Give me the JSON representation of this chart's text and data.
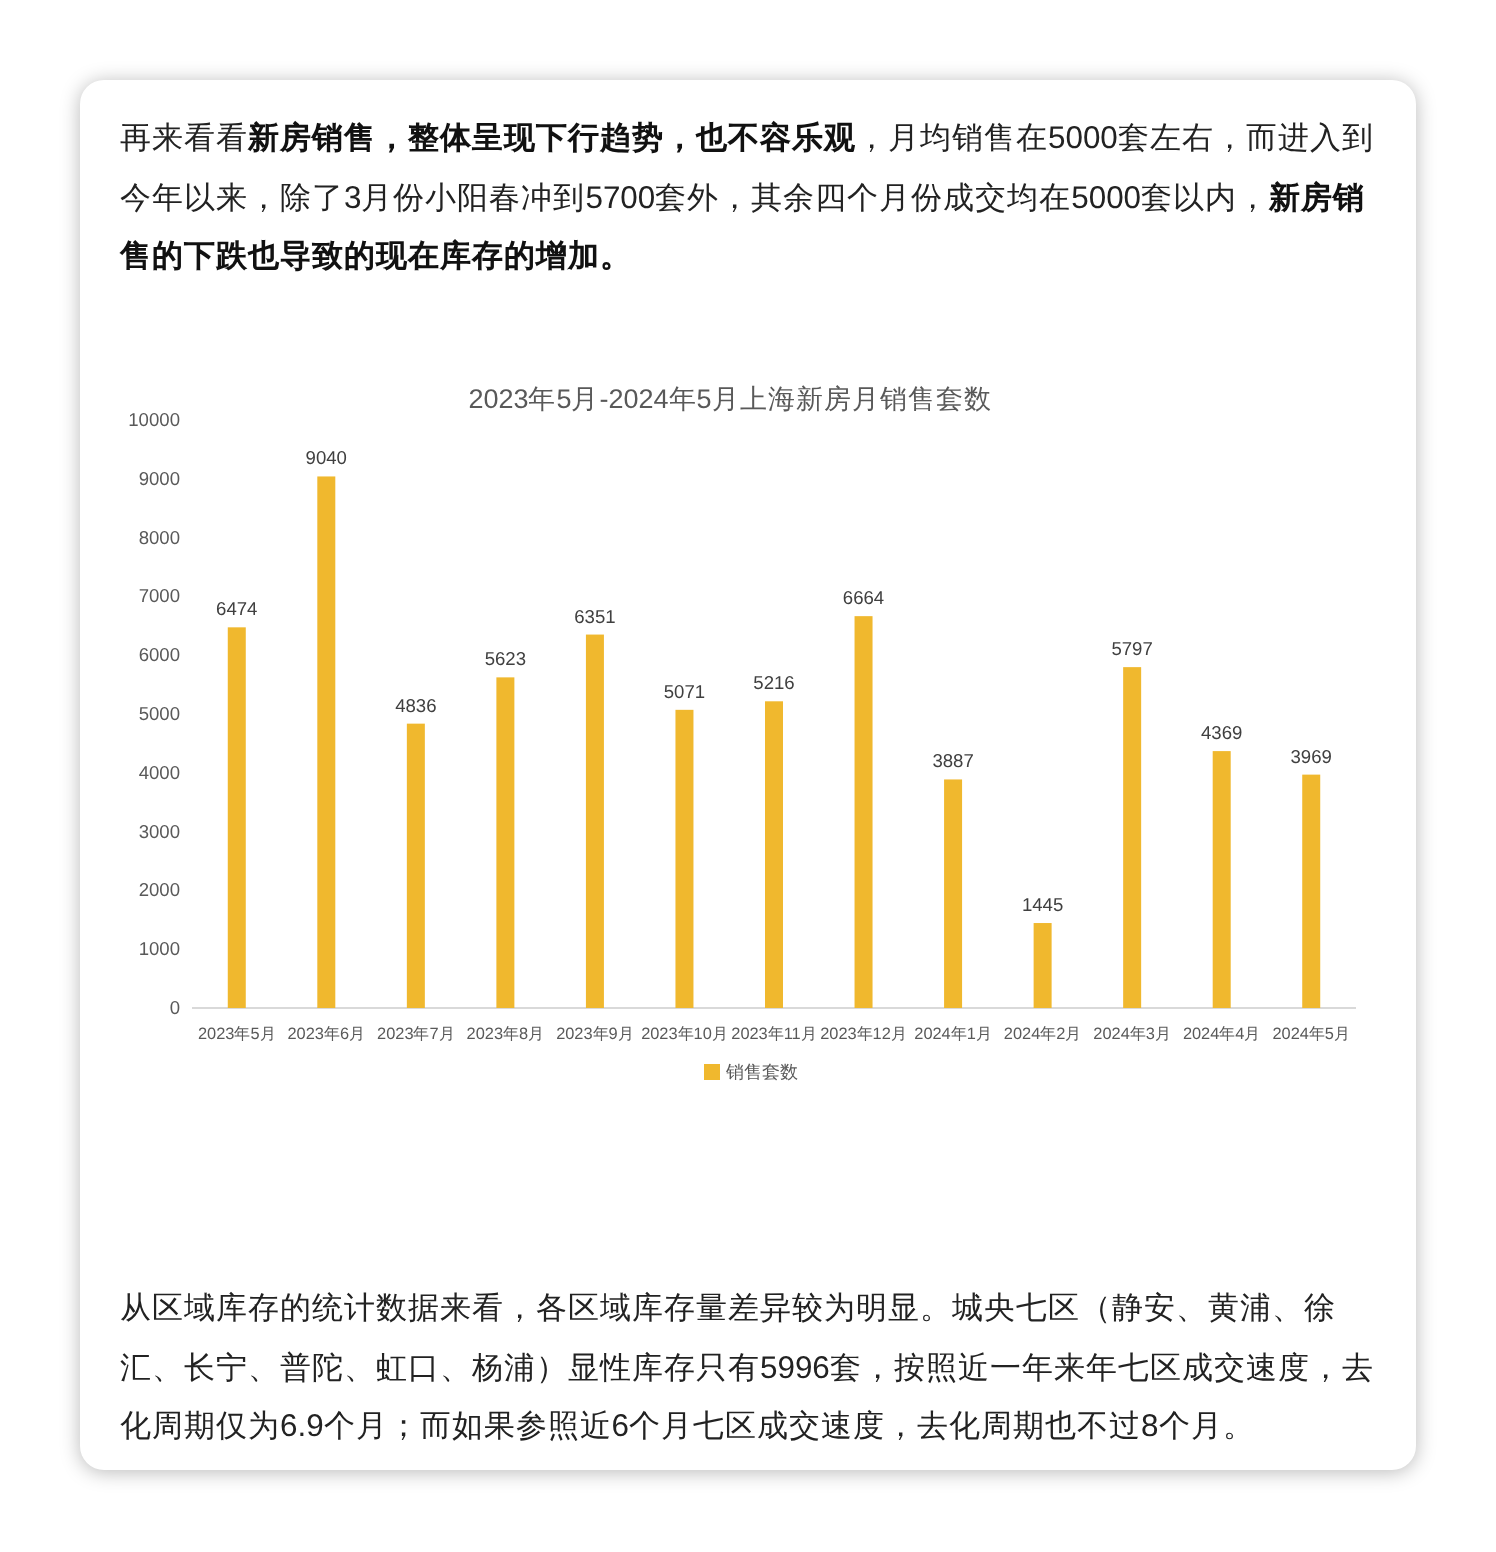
{
  "chart_data": {
    "type": "bar",
    "title": "2023年5月-2024年5月上海新房月销售套数",
    "annotations": [
      "再来看看**新房销售，整体呈现下行趋势，也不容乐观**，月均销售在5000套左右，而进入到今年以来，除了3月份小阳春冲到5700套外，其余四个月份成交均在5000套以内，**新房销售的下跌也导致的现在库存的增加。**",
      "从区域库存的统计数据来看，各区域库存量差异较为明显。城央七区（静安、黄浦、徐汇、长宁、普陀、虹口、杨浦）显性库存只有5996套，按照近一年来年七区成交速度，去化周期仅为6.9个月；而如果参照近6个月七区成交速度，去化周期也不过8个月。"
    ],
    "categories": [
      "2023年5月",
      "2023年6月",
      "2023年7月",
      "2023年8月",
      "2023年9月",
      "2023年10月",
      "2023年11月",
      "2023年12月",
      "2024年1月",
      "2024年2月",
      "2024年3月",
      "2024年4月",
      "2024年5月"
    ],
    "series": [
      {
        "name": "销售套数",
        "color": "#f0b82e",
        "values": [
          6474,
          9040,
          4836,
          5623,
          6351,
          5071,
          5216,
          6664,
          3887,
          1445,
          5797,
          4369,
          3969
        ]
      }
    ],
    "ylim": [
      0,
      10000
    ],
    "yticks": [
      0,
      1000,
      2000,
      3000,
      4000,
      5000,
      6000,
      7000,
      8000,
      9000,
      10000
    ],
    "data_labels": true,
    "legend": "bottom"
  }
}
